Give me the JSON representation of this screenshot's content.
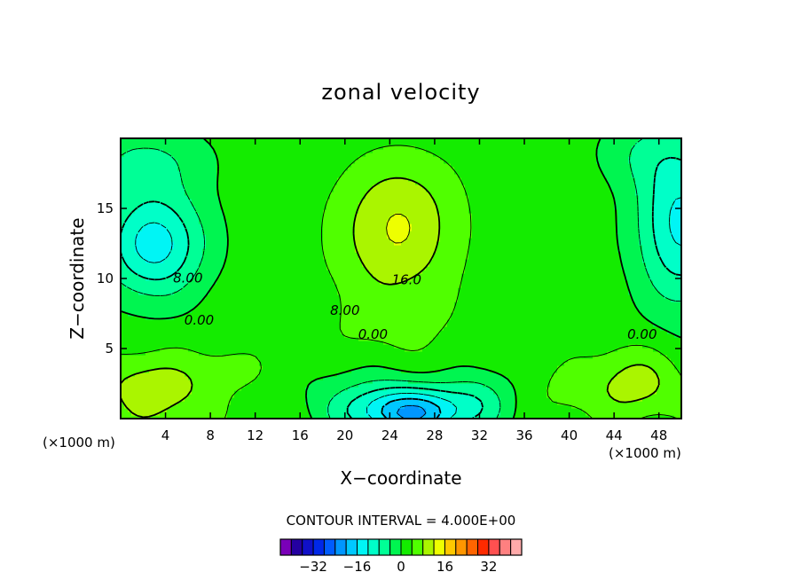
{
  "chart_data": {
    "type": "heatmap",
    "title": "zonal velocity",
    "xlabel": "X−coordinate",
    "ylabel": "Z−coordinate",
    "x_unit_left": "(×1000 m)",
    "x_unit_right": "(×1000 m)",
    "xlim": [
      0,
      50
    ],
    "ylim": [
      0,
      20
    ],
    "xticks": [
      4,
      8,
      12,
      16,
      20,
      24,
      28,
      32,
      36,
      40,
      44,
      48
    ],
    "xtick_labels": [
      "4",
      "8",
      "12",
      "16",
      "20",
      "24",
      "28",
      "32",
      "36",
      "40",
      "44",
      "48"
    ],
    "yticks": [
      5,
      10,
      15
    ],
    "ytick_labels": [
      "5",
      "10",
      "15"
    ],
    "contour_interval_label": "CONTOUR INTERVAL = 4.000E+00",
    "contour_interval": 4,
    "contour_labels": [
      {
        "text": "8.00",
        "x": 6.0,
        "y": 9.7
      },
      {
        "text": "0.00",
        "x": 7.0,
        "y": 6.7
      },
      {
        "text": "16.0",
        "x": 25.5,
        "y": 9.6
      },
      {
        "text": "8.00",
        "x": 20.0,
        "y": 7.4
      },
      {
        "text": "0.00",
        "x": 22.5,
        "y": 5.7
      },
      {
        "text": "0.00",
        "x": 46.5,
        "y": 5.7
      }
    ],
    "colorbar": {
      "levels": [
        -40,
        -36,
        -32,
        -28,
        -24,
        -20,
        -16,
        -12,
        -8,
        -4,
        0,
        4,
        8,
        12,
        16,
        20,
        24,
        28,
        32,
        36
      ],
      "colors": [
        "#7a00b8",
        "#2400a0",
        "#1010c8",
        "#0028e8",
        "#005cff",
        "#0096ff",
        "#00c8ff",
        "#00f5f5",
        "#00ffc8",
        "#00ff96",
        "#00f550",
        "#14ec00",
        "#50ff00",
        "#aaf500",
        "#eeff00",
        "#ffc800",
        "#ff9600",
        "#ff6400",
        "#ff2a00",
        "#ff5050",
        "#ff8080",
        "#ffaaaa"
      ],
      "tick_values": [
        -32,
        -16,
        0,
        16,
        32
      ],
      "tick_labels": [
        "−32",
        "−16",
        "0",
        "16",
        "32"
      ]
    },
    "field_features": [
      {
        "x": 24.5,
        "y": 12.5,
        "amp": 8.5,
        "sx": 5.2,
        "sy": 4.2
      },
      {
        "x": 25.0,
        "y": 16.0,
        "amp": 4.0,
        "sx": 5.0,
        "sy": 3.5
      },
      {
        "x": 24.0,
        "y": 6.0,
        "amp": 2.5,
        "sx": 7.0,
        "sy": 3.0
      },
      {
        "x": 26.0,
        "y": 0.4,
        "amp": -21.0,
        "sx": 5.5,
        "sy": 1.8
      },
      {
        "x": 22.0,
        "y": 2.0,
        "amp": -4.0,
        "sx": 6.0,
        "sy": 2.5
      },
      {
        "x": 32.0,
        "y": 1.8,
        "amp": -5.0,
        "sx": 3.0,
        "sy": 2.0
      },
      {
        "x": 3.0,
        "y": 12.5,
        "amp": -16.0,
        "sx": 4.5,
        "sy": 3.8
      },
      {
        "x": 2.0,
        "y": 18.5,
        "amp": -6.0,
        "sx": 6.0,
        "sy": 2.5
      },
      {
        "x": 50.0,
        "y": 14.0,
        "amp": -15.0,
        "sx": 4.0,
        "sy": 6.0
      },
      {
        "x": 46.0,
        "y": 19.0,
        "amp": -4.0,
        "sx": 4.0,
        "sy": 2.5
      },
      {
        "x": 3.0,
        "y": 2.0,
        "amp": 9.0,
        "sx": 5.0,
        "sy": 2.5
      },
      {
        "x": 10.0,
        "y": 3.5,
        "amp": 3.0,
        "sx": 3.0,
        "sy": 1.5
      },
      {
        "x": 46.0,
        "y": 2.5,
        "amp": 8.0,
        "sx": 4.0,
        "sy": 2.5
      },
      {
        "x": 40.0,
        "y": 2.0,
        "amp": 3.0,
        "sx": 3.0,
        "sy": 2.0
      }
    ],
    "field_base": 2.0,
    "legend": "none",
    "grid": false
  }
}
